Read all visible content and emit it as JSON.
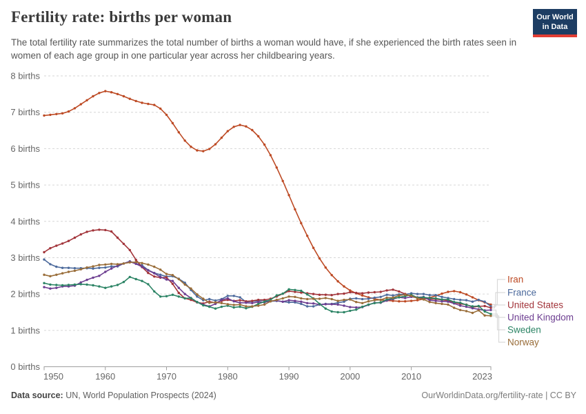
{
  "header": {
    "title": "Fertility rate: births per woman",
    "subtitle": "The total fertility rate summarizes the total number of births a woman would have, if she experienced the birth rates seen in women of each age group in one particular year across her childbearing years.",
    "logo": {
      "line1": "Our World",
      "line2": "in Data",
      "bg_color": "#1d3d63",
      "accent_color": "#e23d33"
    }
  },
  "footer": {
    "source_label": "Data source:",
    "source_value": " UN, World Population Prospects (2024)",
    "link": "OurWorldinData.org/fertility-rate | CC BY"
  },
  "chart_data": {
    "type": "line",
    "title": "Fertility rate: births per woman",
    "xlabel": "",
    "ylabel": "births per woman",
    "ylim": [
      0,
      8
    ],
    "xlim": [
      1950,
      2023
    ],
    "grid": "dashed-horizontal",
    "legend_position": "right-of-line-ends",
    "y_ticks": [
      0,
      1,
      2,
      3,
      4,
      5,
      6,
      7,
      8
    ],
    "y_tick_suffix": " births",
    "x_ticks": [
      1950,
      1960,
      1970,
      1980,
      1990,
      2000,
      2010,
      2023
    ],
    "years": [
      1950,
      1951,
      1952,
      1953,
      1954,
      1955,
      1956,
      1957,
      1958,
      1959,
      1960,
      1961,
      1962,
      1963,
      1964,
      1965,
      1966,
      1967,
      1968,
      1969,
      1970,
      1971,
      1972,
      1973,
      1974,
      1975,
      1976,
      1977,
      1978,
      1979,
      1980,
      1981,
      1982,
      1983,
      1984,
      1985,
      1986,
      1987,
      1988,
      1989,
      1990,
      1991,
      1992,
      1993,
      1994,
      1995,
      1996,
      1997,
      1998,
      1999,
      2000,
      2001,
      2002,
      2003,
      2004,
      2005,
      2006,
      2007,
      2008,
      2009,
      2010,
      2011,
      2012,
      2013,
      2014,
      2015,
      2016,
      2017,
      2018,
      2019,
      2020,
      2021,
      2022,
      2023
    ],
    "series": [
      {
        "name": "Iran",
        "color": "#BD4A24",
        "values": [
          6.91,
          6.93,
          6.95,
          6.97,
          7.02,
          7.11,
          7.22,
          7.33,
          7.44,
          7.53,
          7.58,
          7.55,
          7.5,
          7.44,
          7.37,
          7.31,
          7.26,
          7.23,
          7.2,
          7.1,
          6.93,
          6.7,
          6.45,
          6.22,
          6.05,
          5.95,
          5.93,
          5.99,
          6.12,
          6.3,
          6.48,
          6.6,
          6.65,
          6.61,
          6.51,
          6.34,
          6.11,
          5.82,
          5.48,
          5.11,
          4.72,
          4.33,
          3.95,
          3.6,
          3.27,
          2.98,
          2.73,
          2.52,
          2.35,
          2.21,
          2.1,
          2.02,
          1.96,
          1.91,
          1.87,
          1.84,
          1.82,
          1.81,
          1.8,
          1.8,
          1.81,
          1.83,
          1.86,
          1.9,
          1.95,
          2.01,
          2.06,
          2.08,
          2.05,
          1.99,
          1.91,
          1.83,
          1.77,
          1.71
        ]
      },
      {
        "name": "France",
        "color": "#4C6A9C",
        "values": [
          2.95,
          2.82,
          2.75,
          2.72,
          2.72,
          2.71,
          2.71,
          2.71,
          2.7,
          2.72,
          2.73,
          2.76,
          2.76,
          2.84,
          2.9,
          2.84,
          2.79,
          2.66,
          2.58,
          2.53,
          2.48,
          2.49,
          2.42,
          2.31,
          2.11,
          1.93,
          1.83,
          1.86,
          1.82,
          1.86,
          1.95,
          1.95,
          1.91,
          1.78,
          1.8,
          1.81,
          1.83,
          1.8,
          1.81,
          1.79,
          1.77,
          1.77,
          1.73,
          1.66,
          1.66,
          1.71,
          1.73,
          1.73,
          1.76,
          1.79,
          1.87,
          1.88,
          1.86,
          1.87,
          1.9,
          1.92,
          1.98,
          1.96,
          1.99,
          1.99,
          2.02,
          2.0,
          2.0,
          1.97,
          1.97,
          1.92,
          1.89,
          1.86,
          1.84,
          1.83,
          1.79,
          1.84,
          1.79,
          1.66
        ]
      },
      {
        "name": "United States",
        "color": "#A2343A",
        "values": [
          3.15,
          3.26,
          3.33,
          3.39,
          3.46,
          3.55,
          3.64,
          3.71,
          3.75,
          3.77,
          3.76,
          3.72,
          3.55,
          3.38,
          3.21,
          2.94,
          2.74,
          2.58,
          2.48,
          2.45,
          2.46,
          2.28,
          2.03,
          1.88,
          1.84,
          1.77,
          1.74,
          1.79,
          1.76,
          1.81,
          1.84,
          1.81,
          1.83,
          1.8,
          1.81,
          1.84,
          1.84,
          1.87,
          1.93,
          2.01,
          2.08,
          2.06,
          2.04,
          2.02,
          2.0,
          1.98,
          1.98,
          1.97,
          2.0,
          2.01,
          2.05,
          2.03,
          2.02,
          2.04,
          2.05,
          2.06,
          2.1,
          2.12,
          2.07,
          2.0,
          1.93,
          1.89,
          1.88,
          1.86,
          1.86,
          1.84,
          1.82,
          1.77,
          1.73,
          1.71,
          1.64,
          1.66,
          1.67,
          1.62
        ]
      },
      {
        "name": "United Kingdom",
        "color": "#6D3E91",
        "values": [
          2.19,
          2.15,
          2.17,
          2.21,
          2.21,
          2.23,
          2.32,
          2.39,
          2.45,
          2.5,
          2.61,
          2.7,
          2.78,
          2.84,
          2.89,
          2.83,
          2.75,
          2.65,
          2.57,
          2.47,
          2.4,
          2.36,
          2.17,
          2.0,
          1.89,
          1.78,
          1.71,
          1.66,
          1.73,
          1.84,
          1.88,
          1.8,
          1.76,
          1.76,
          1.75,
          1.78,
          1.77,
          1.81,
          1.82,
          1.79,
          1.83,
          1.81,
          1.79,
          1.75,
          1.74,
          1.71,
          1.72,
          1.72,
          1.71,
          1.68,
          1.64,
          1.63,
          1.64,
          1.7,
          1.76,
          1.76,
          1.82,
          1.86,
          1.91,
          1.89,
          1.92,
          1.91,
          1.92,
          1.83,
          1.81,
          1.8,
          1.79,
          1.74,
          1.68,
          1.65,
          1.61,
          1.58,
          1.55,
          1.56
        ]
      },
      {
        "name": "Sweden",
        "color": "#2C8465",
        "values": [
          2.3,
          2.26,
          2.25,
          2.24,
          2.25,
          2.26,
          2.27,
          2.26,
          2.24,
          2.21,
          2.17,
          2.21,
          2.25,
          2.33,
          2.47,
          2.41,
          2.36,
          2.27,
          2.07,
          1.93,
          1.94,
          1.98,
          1.93,
          1.88,
          1.89,
          1.78,
          1.69,
          1.65,
          1.6,
          1.65,
          1.68,
          1.63,
          1.65,
          1.61,
          1.65,
          1.73,
          1.79,
          1.84,
          1.96,
          2.01,
          2.13,
          2.11,
          2.09,
          1.99,
          1.88,
          1.73,
          1.6,
          1.52,
          1.5,
          1.5,
          1.54,
          1.57,
          1.65,
          1.71,
          1.75,
          1.77,
          1.85,
          1.88,
          1.91,
          1.94,
          1.98,
          1.9,
          1.91,
          1.89,
          1.88,
          1.85,
          1.85,
          1.78,
          1.76,
          1.7,
          1.66,
          1.67,
          1.52,
          1.45
        ]
      },
      {
        "name": "Norway",
        "color": "#996D39",
        "values": [
          2.53,
          2.49,
          2.53,
          2.57,
          2.61,
          2.64,
          2.68,
          2.73,
          2.76,
          2.8,
          2.81,
          2.83,
          2.82,
          2.84,
          2.87,
          2.88,
          2.85,
          2.81,
          2.75,
          2.67,
          2.55,
          2.52,
          2.41,
          2.26,
          2.15,
          1.99,
          1.87,
          1.76,
          1.77,
          1.75,
          1.72,
          1.7,
          1.71,
          1.66,
          1.66,
          1.68,
          1.71,
          1.8,
          1.84,
          1.88,
          1.93,
          1.92,
          1.88,
          1.86,
          1.87,
          1.87,
          1.89,
          1.86,
          1.81,
          1.84,
          1.85,
          1.78,
          1.75,
          1.8,
          1.83,
          1.84,
          1.9,
          1.9,
          1.96,
          1.98,
          1.95,
          1.88,
          1.85,
          1.78,
          1.75,
          1.73,
          1.71,
          1.62,
          1.56,
          1.53,
          1.48,
          1.55,
          1.41,
          1.4
        ]
      }
    ]
  }
}
